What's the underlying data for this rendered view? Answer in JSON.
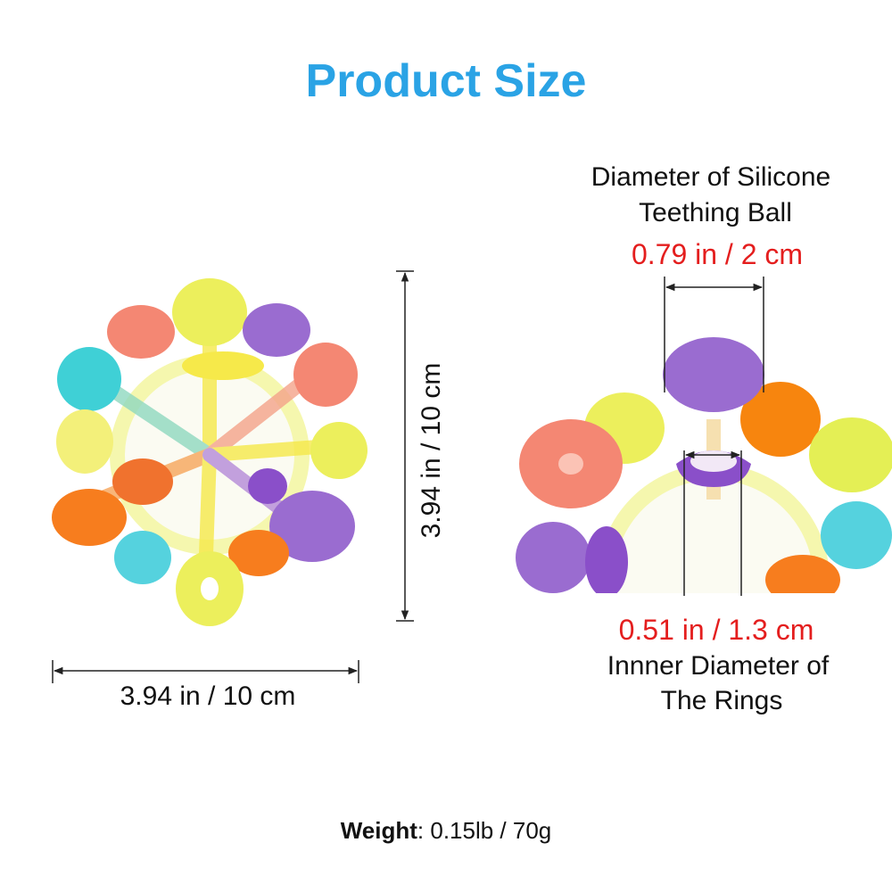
{
  "header": {
    "title": "Product Size"
  },
  "overall": {
    "height_label": "3.94 in / 10 cm",
    "width_label": "3.94 in / 10 cm"
  },
  "ball": {
    "label_lines": [
      "Diameter of Silicone",
      "Teething Ball"
    ],
    "value": "0.79 in / 2 cm"
  },
  "rings": {
    "value": "0.51 in / 1.3 cm",
    "label_lines": [
      "Innner Diameter of",
      "The Rings"
    ]
  },
  "weight": {
    "label": "Weight",
    "value": ": 0.15lb / 70g"
  }
}
